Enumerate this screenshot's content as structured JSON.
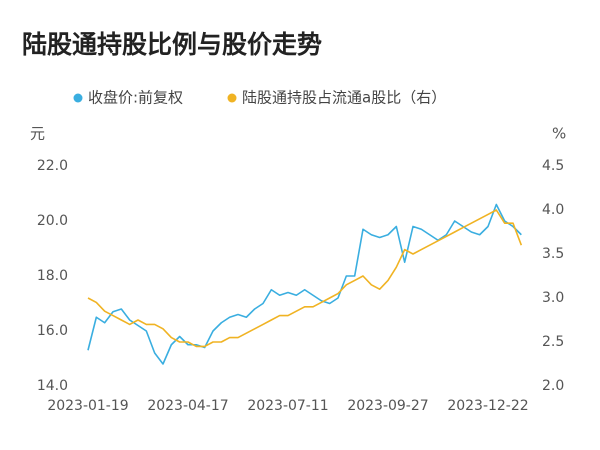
{
  "chart_data": {
    "type": "line",
    "title": "陆股通持股比例与股价走势",
    "y_unit": "元",
    "y2_unit": "%",
    "categories": [
      "2023-01-19",
      null,
      null,
      null,
      null,
      null,
      null,
      null,
      null,
      null,
      null,
      null,
      "2023-04-17",
      null,
      null,
      null,
      null,
      null,
      null,
      null,
      null,
      null,
      null,
      null,
      "2023-07-11",
      null,
      null,
      null,
      null,
      null,
      null,
      null,
      null,
      null,
      null,
      null,
      "2023-09-27",
      null,
      null,
      null,
      null,
      null,
      null,
      null,
      null,
      null,
      null,
      null,
      "2023-12-22",
      null,
      null,
      null,
      null
    ],
    "series": [
      {
        "name": "收盘价:前复权",
        "color": "#3aaee0",
        "values": [
          15.3,
          16.5,
          16.3,
          16.7,
          16.8,
          16.4,
          16.2,
          16.0,
          15.2,
          14.8,
          15.5,
          15.8,
          15.5,
          15.5,
          15.4,
          16.0,
          16.3,
          16.5,
          16.6,
          16.5,
          16.8,
          17.0,
          17.5,
          17.3,
          17.4,
          17.3,
          17.5,
          17.3,
          17.1,
          17.0,
          17.2,
          18.0,
          18.0,
          19.7,
          19.5,
          19.4,
          19.5,
          19.8,
          18.5,
          19.8,
          19.7,
          19.5,
          19.3,
          19.5,
          20.0,
          19.8,
          19.6,
          19.5,
          19.8,
          20.6,
          20.0,
          19.8,
          19.5
        ]
      },
      {
        "name": "陆股通持股占流通a股比（右）",
        "color": "#f0b323",
        "axis": "y2",
        "values": [
          3.0,
          2.95,
          2.85,
          2.8,
          2.75,
          2.7,
          2.75,
          2.7,
          2.7,
          2.65,
          2.55,
          2.5,
          2.5,
          2.45,
          2.45,
          2.5,
          2.5,
          2.55,
          2.55,
          2.6,
          2.65,
          2.7,
          2.75,
          2.8,
          2.8,
          2.85,
          2.9,
          2.9,
          2.95,
          3.0,
          3.05,
          3.15,
          3.2,
          3.25,
          3.15,
          3.1,
          3.2,
          3.35,
          3.55,
          3.5,
          3.55,
          3.6,
          3.65,
          3.7,
          3.75,
          3.8,
          3.85,
          3.9,
          3.95,
          4.0,
          3.85,
          3.85,
          3.6
        ]
      }
    ],
    "ylim": [
      14,
      22
    ],
    "yticks": [
      {
        "value": 14,
        "label": "14.0"
      },
      {
        "value": 16,
        "label": "16.0"
      },
      {
        "value": 18,
        "label": "18.0"
      },
      {
        "value": 20,
        "label": "20.0"
      },
      {
        "value": 22,
        "label": "22.0"
      }
    ],
    "y2lim": [
      2,
      4.5
    ],
    "y2ticks": [
      {
        "value": 2,
        "label": "2.0"
      },
      2.5,
      {
        "value": 3,
        "label": "3.0"
      },
      3.5,
      {
        "value": 4,
        "label": "4.0"
      },
      4.5
    ]
  }
}
